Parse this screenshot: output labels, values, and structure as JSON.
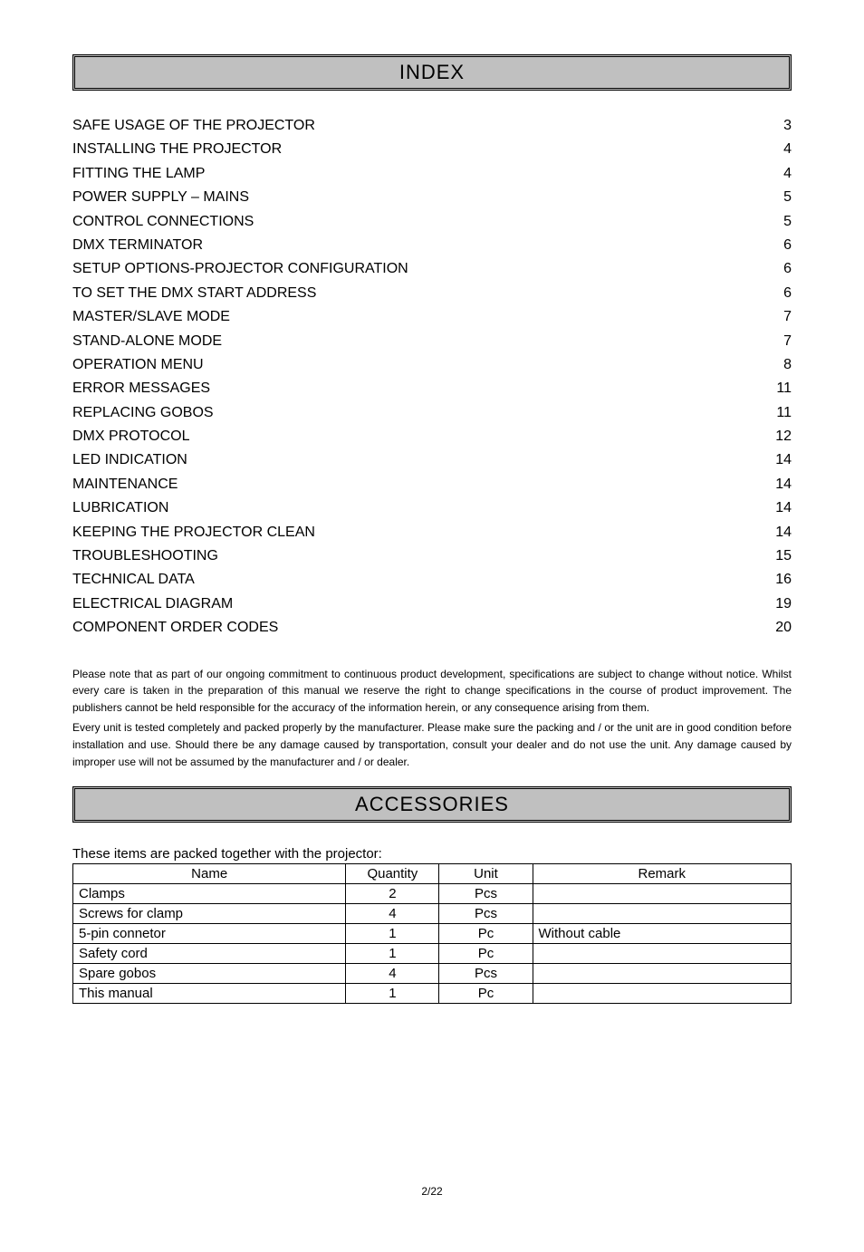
{
  "index": {
    "title": "INDEX",
    "items": [
      {
        "label": "SAFE USAGE OF THE PROJECTOR",
        "page": "3"
      },
      {
        "label": "INSTALLING THE PROJECTOR",
        "page": "4"
      },
      {
        "label": "FITTING THE LAMP",
        "page": "4"
      },
      {
        "label": "POWER SUPPLY – MAINS",
        "page": "5"
      },
      {
        "label": "CONTROL CONNECTIONS",
        "page": "5"
      },
      {
        "label": "DMX TERMINATOR",
        "page": "6"
      },
      {
        "label": "SETUP OPTIONS-PROJECTOR CONFIGURATION",
        "page": "6"
      },
      {
        "label": "TO SET THE DMX START ADDRESS",
        "page": "6"
      },
      {
        "label": "MASTER/SLAVE MODE",
        "page": "7"
      },
      {
        "label": "STAND-ALONE MODE",
        "page": "7"
      },
      {
        "label": "OPERATION MENU",
        "page": "8"
      },
      {
        "label": "ERROR MESSAGES",
        "page": "11"
      },
      {
        "label": "REPLACING GOBOS",
        "page": "11"
      },
      {
        "label": "DMX PROTOCOL",
        "page": "12"
      },
      {
        "label": "LED INDICATION",
        "page": "14"
      },
      {
        "label": "MAINTENANCE",
        "page": "14"
      },
      {
        "label": "LUBRICATION",
        "page": "14"
      },
      {
        "label": "KEEPING THE PROJECTOR CLEAN",
        "page": "14"
      },
      {
        "label": "TROUBLESHOOTING",
        "page": "15"
      },
      {
        "label": "TECHNICAL DATA",
        "page": "16"
      },
      {
        "label": "ELECTRICAL DIAGRAM",
        "page": "19"
      },
      {
        "label": "COMPONENT ORDER CODES",
        "page": "20"
      }
    ]
  },
  "notes": {
    "para1": "Please note that as part of our ongoing commitment to continuous product development, specifications are subject to change without notice. Whilst every care is taken in the preparation of this manual we reserve the right to change specifications in the course of product improvement. The publishers cannot be held responsible for the accuracy of the information herein, or any consequence arising from them.",
    "para2": "Every unit is tested completely and packed properly by the manufacturer. Please make sure the packing and / or the unit are in good condition before installation and use. Should there be any damage caused by transportation, consult your dealer and do not use the unit. Any damage caused by improper use will not be assumed by the manufacturer and / or dealer."
  },
  "accessories": {
    "title": "ACCESSORIES",
    "intro": "These items are packed together with the projector:",
    "columns": {
      "name": "Name",
      "quantity": "Quantity",
      "unit": "Unit",
      "remark": "Remark"
    },
    "rows": [
      {
        "name": "Clamps",
        "quantity": "2",
        "unit": "Pcs",
        "remark": ""
      },
      {
        "name": "Screws for clamp",
        "quantity": "4",
        "unit": "Pcs",
        "remark": ""
      },
      {
        "name": "5-pin connetor",
        "quantity": "1",
        "unit": "Pc",
        "remark": "Without cable"
      },
      {
        "name": "Safety cord",
        "quantity": "1",
        "unit": "Pc",
        "remark": ""
      },
      {
        "name": "Spare gobos",
        "quantity": "4",
        "unit": "Pcs",
        "remark": ""
      },
      {
        "name": "This manual",
        "quantity": "1",
        "unit": "Pc",
        "remark": ""
      }
    ]
  },
  "footer": {
    "text": "2/22"
  }
}
